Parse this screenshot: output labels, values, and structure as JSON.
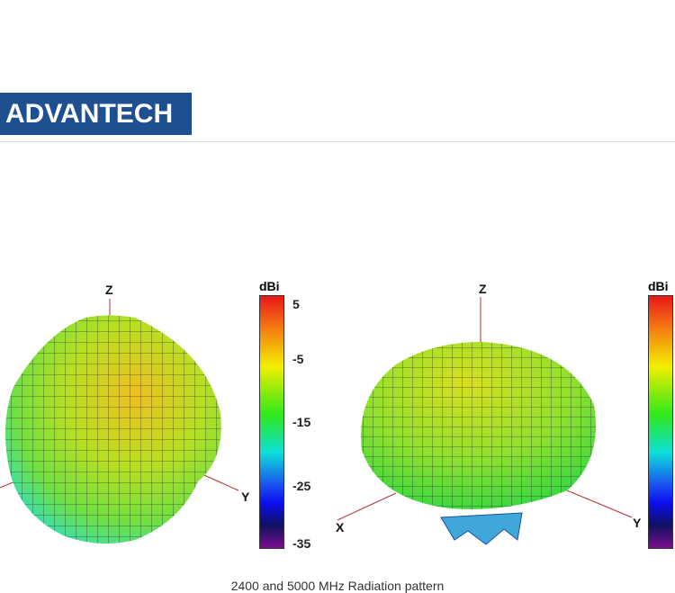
{
  "logo": {
    "text": "ADVANTECH",
    "color": "#1d4f91"
  },
  "plots": [
    {
      "colorbar_title": "dBi",
      "ticks": [
        "5",
        "-5",
        "-15",
        "-25",
        "-35"
      ],
      "axes": {
        "z": "Z",
        "y": "Y"
      }
    },
    {
      "colorbar_title": "dBi",
      "axes": {
        "z": "Z",
        "x": "X",
        "y": "Y"
      }
    }
  ],
  "caption": "2400 and 5000 MHz Radiation pattern"
}
